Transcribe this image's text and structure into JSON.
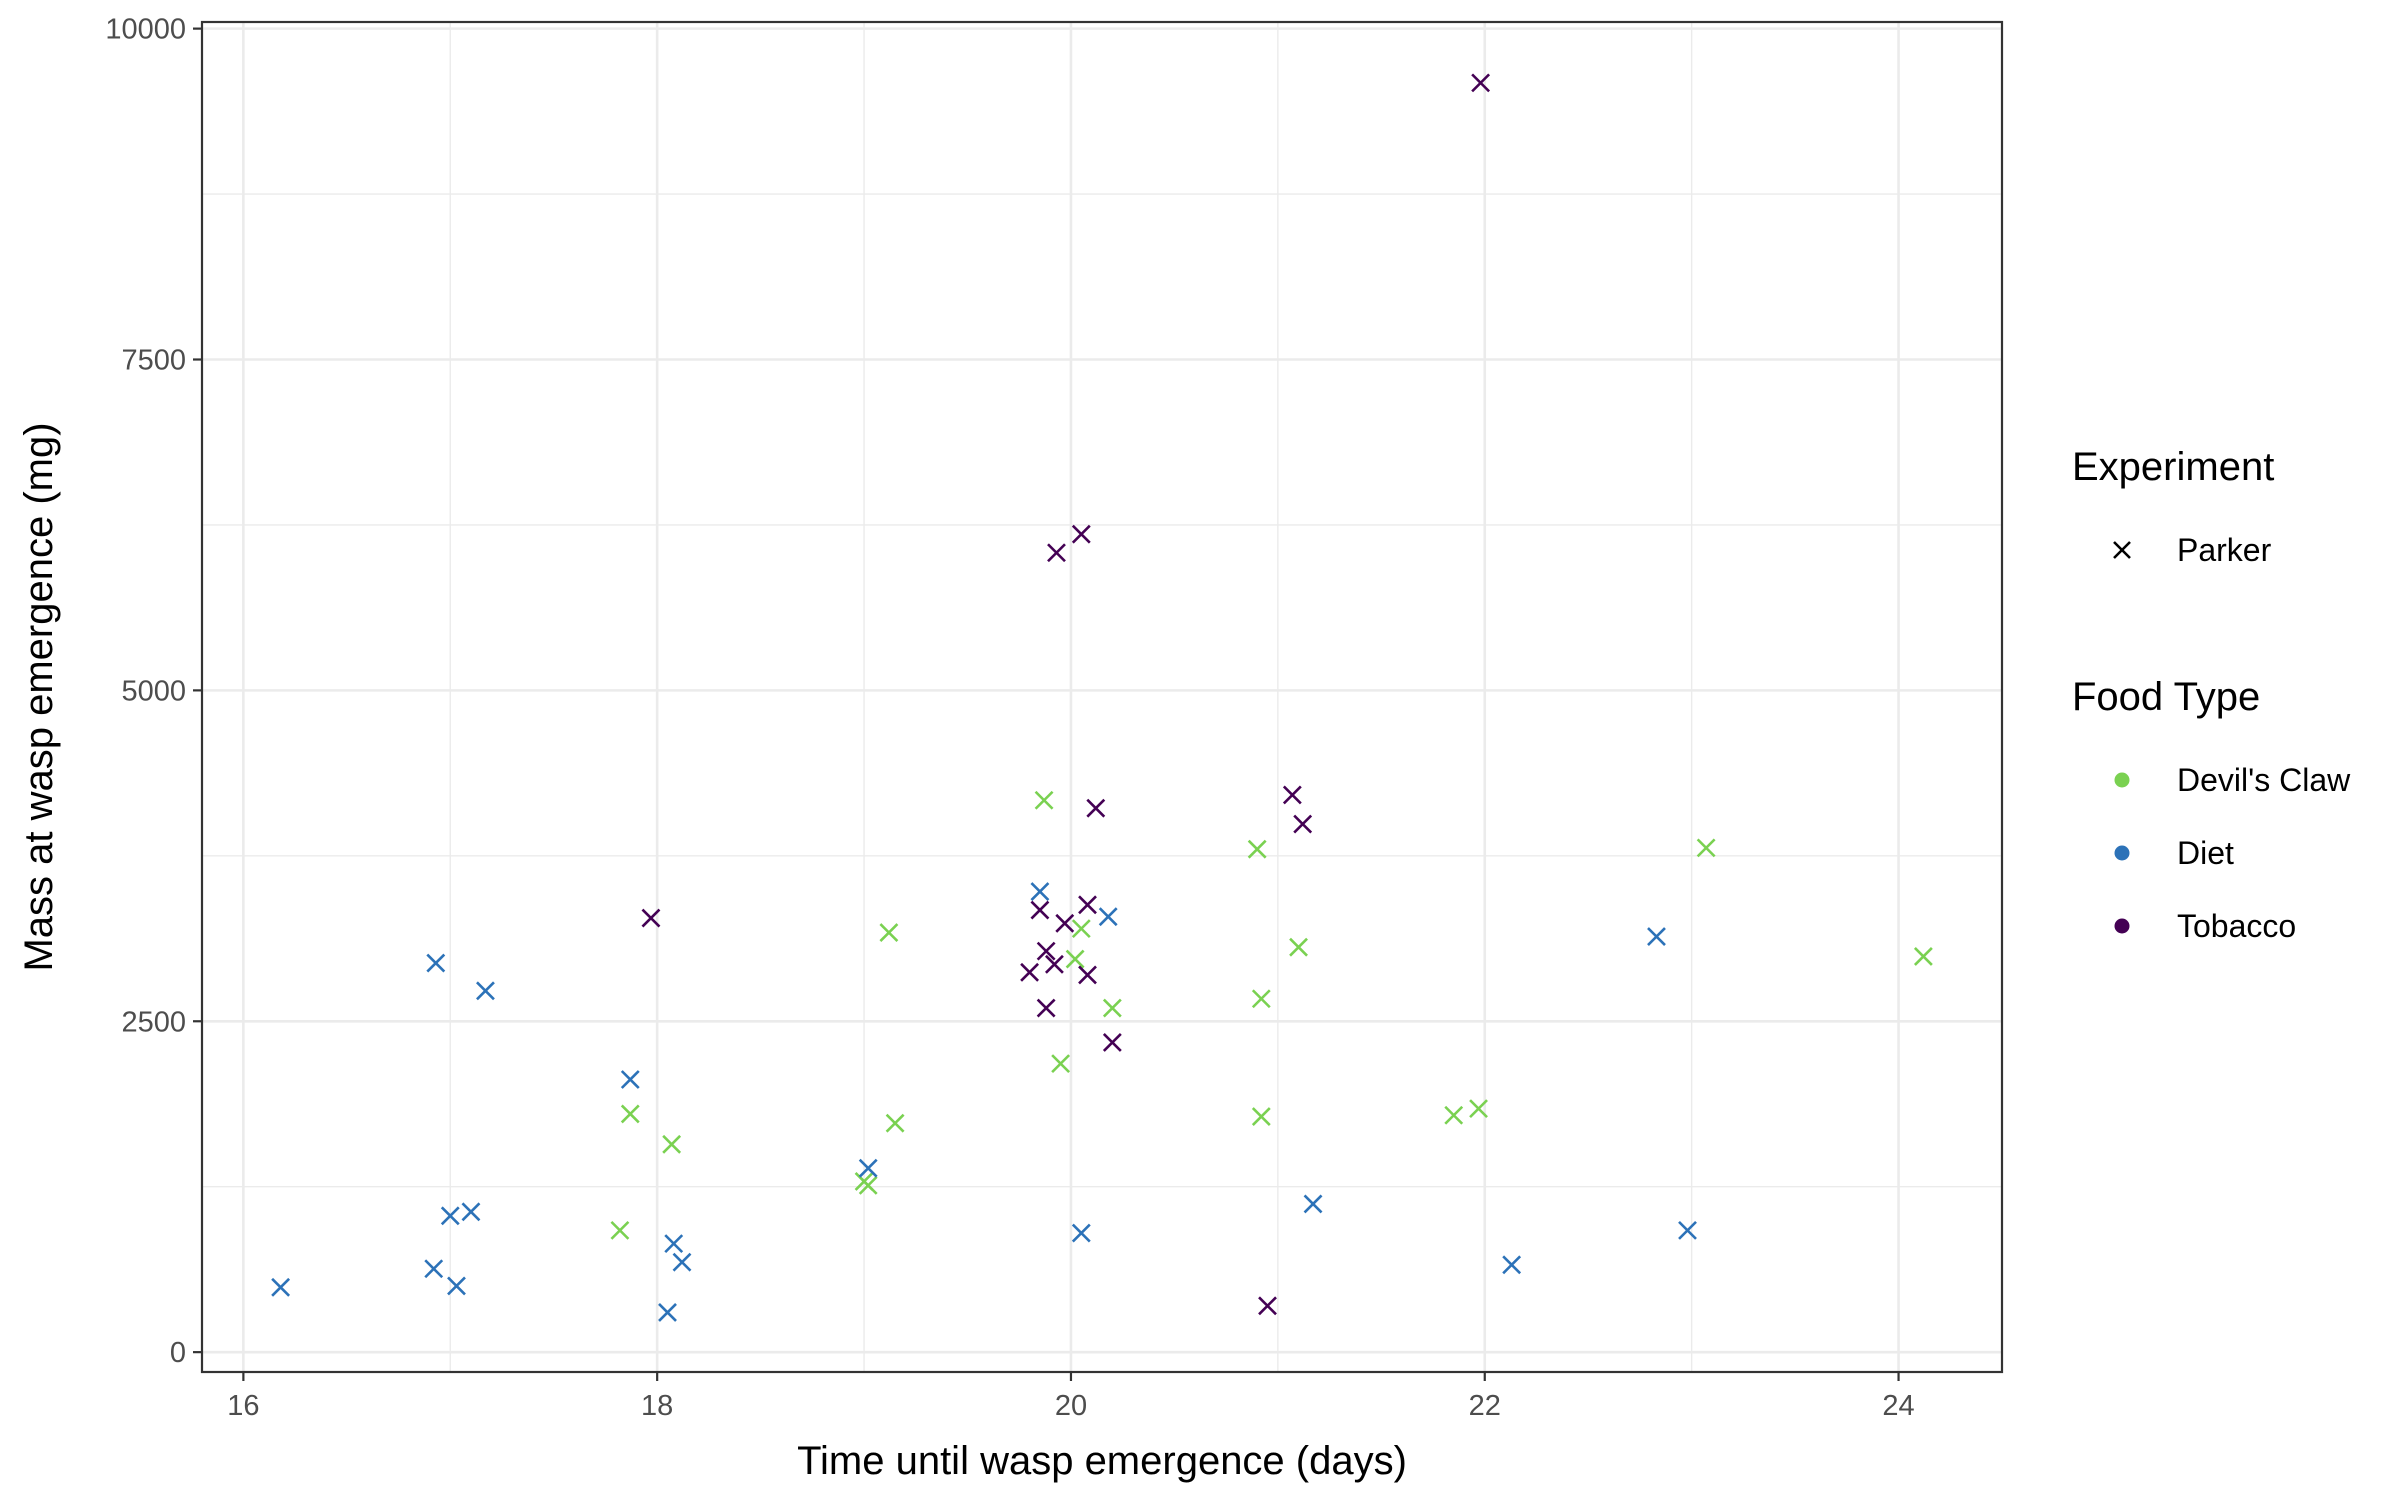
{
  "chart_data": {
    "type": "scatter",
    "title": "",
    "xlabel": "Time until wasp emergence (days)",
    "ylabel": "Mass at wasp emergence (mg)",
    "xlim": [
      15.8,
      24.5
    ],
    "ylim": [
      -150,
      10050
    ],
    "xticks": [
      16,
      18,
      20,
      22,
      24
    ],
    "xtick_labels": [
      "16",
      "18",
      "20",
      "22",
      "24"
    ],
    "yticks": [
      0,
      2500,
      5000,
      7500,
      10000
    ],
    "ytick_labels": [
      "0",
      "2500",
      "5000",
      "7500",
      "10000"
    ],
    "grid": true,
    "marker": "x",
    "legend_position": "right",
    "legend": {
      "shape_title": "Experiment",
      "shape_items": [
        {
          "label": "Parker",
          "marker": "x",
          "color": "#000000"
        }
      ],
      "color_title": "Food Type",
      "color_items": [
        {
          "label": "Devil's Claw",
          "color": "#7AD151"
        },
        {
          "label": "Diet",
          "color": "#2C72B8"
        },
        {
          "label": "Tobacco",
          "color": "#440154"
        }
      ]
    },
    "series": [
      {
        "name": "Devil's Claw",
        "color": "#7AD151",
        "points": [
          [
            17.82,
            920
          ],
          [
            17.87,
            1800
          ],
          [
            18.07,
            1570
          ],
          [
            19.0,
            1290
          ],
          [
            19.02,
            1260
          ],
          [
            19.12,
            3170
          ],
          [
            19.15,
            1730
          ],
          [
            19.87,
            4170
          ],
          [
            19.95,
            2180
          ],
          [
            20.02,
            2970
          ],
          [
            20.05,
            3200
          ],
          [
            20.2,
            2600
          ],
          [
            20.9,
            3800
          ],
          [
            20.92,
            2670
          ],
          [
            20.92,
            1780
          ],
          [
            21.1,
            3060
          ],
          [
            21.85,
            1790
          ],
          [
            21.97,
            1840
          ],
          [
            23.07,
            3810
          ],
          [
            24.12,
            2990
          ]
        ]
      },
      {
        "name": "Diet",
        "color": "#2C72B8",
        "points": [
          [
            16.18,
            490
          ],
          [
            16.92,
            630
          ],
          [
            16.93,
            2940
          ],
          [
            17.0,
            1030
          ],
          [
            17.03,
            500
          ],
          [
            17.1,
            1060
          ],
          [
            17.17,
            2730
          ],
          [
            17.87,
            2060
          ],
          [
            18.05,
            300
          ],
          [
            18.08,
            820
          ],
          [
            18.12,
            680
          ],
          [
            19.02,
            1390
          ],
          [
            19.85,
            3480
          ],
          [
            20.05,
            900
          ],
          [
            20.18,
            3290
          ],
          [
            21.17,
            1120
          ],
          [
            22.13,
            660
          ],
          [
            22.83,
            3140
          ],
          [
            22.98,
            920
          ]
        ]
      },
      {
        "name": "Tobacco",
        "color": "#440154",
        "points": [
          [
            17.97,
            3280
          ],
          [
            19.8,
            2870
          ],
          [
            19.85,
            3340
          ],
          [
            19.88,
            3030
          ],
          [
            19.88,
            2600
          ],
          [
            19.92,
            2930
          ],
          [
            19.93,
            6040
          ],
          [
            19.97,
            3240
          ],
          [
            20.05,
            6180
          ],
          [
            20.08,
            3380
          ],
          [
            20.08,
            2850
          ],
          [
            20.12,
            4110
          ],
          [
            20.2,
            2340
          ],
          [
            20.95,
            350
          ],
          [
            21.07,
            4210
          ],
          [
            21.12,
            3990
          ],
          [
            21.98,
            9590
          ]
        ]
      }
    ]
  }
}
